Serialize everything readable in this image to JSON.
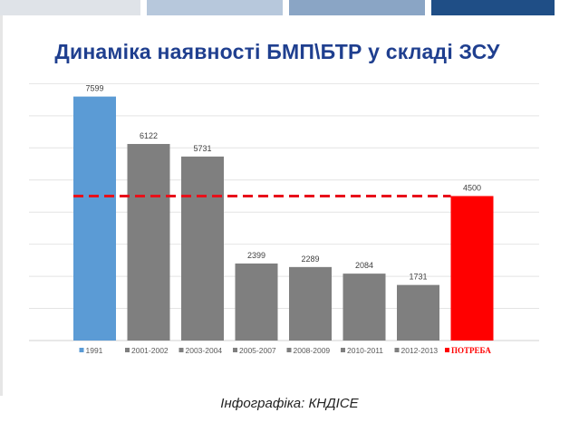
{
  "title": "Динаміка наявності БМП\\БТР у складі ЗСУ",
  "caption": "Інфографіка: КНДІСЕ",
  "colors": {
    "highlight": "#5b9bd5",
    "normal": "#7f7f7f",
    "need": "#ff0000",
    "reference_line": "#e8101a",
    "grid": "#e4e4e4",
    "title": "#1f3f8f"
  },
  "chart_data": {
    "type": "bar",
    "categories": [
      "1991",
      "2001-2002",
      "2003-2004",
      "2005-2007",
      "2008-2009",
      "2010-2011",
      "2012-2013",
      "ПОТРЕБА"
    ],
    "values": [
      7599,
      6122,
      5731,
      2399,
      2289,
      2084,
      1731,
      4500
    ],
    "bar_colors": [
      "#5b9bd5",
      "#7f7f7f",
      "#7f7f7f",
      "#7f7f7f",
      "#7f7f7f",
      "#7f7f7f",
      "#7f7f7f",
      "#ff0000"
    ],
    "reference_line": {
      "value": 4500,
      "style": "dashed",
      "color": "#e8101a"
    },
    "ylim": [
      0,
      8000
    ],
    "y_axis_labels_shown": false,
    "grid": true,
    "legend": "bottom",
    "data_labels": true
  }
}
